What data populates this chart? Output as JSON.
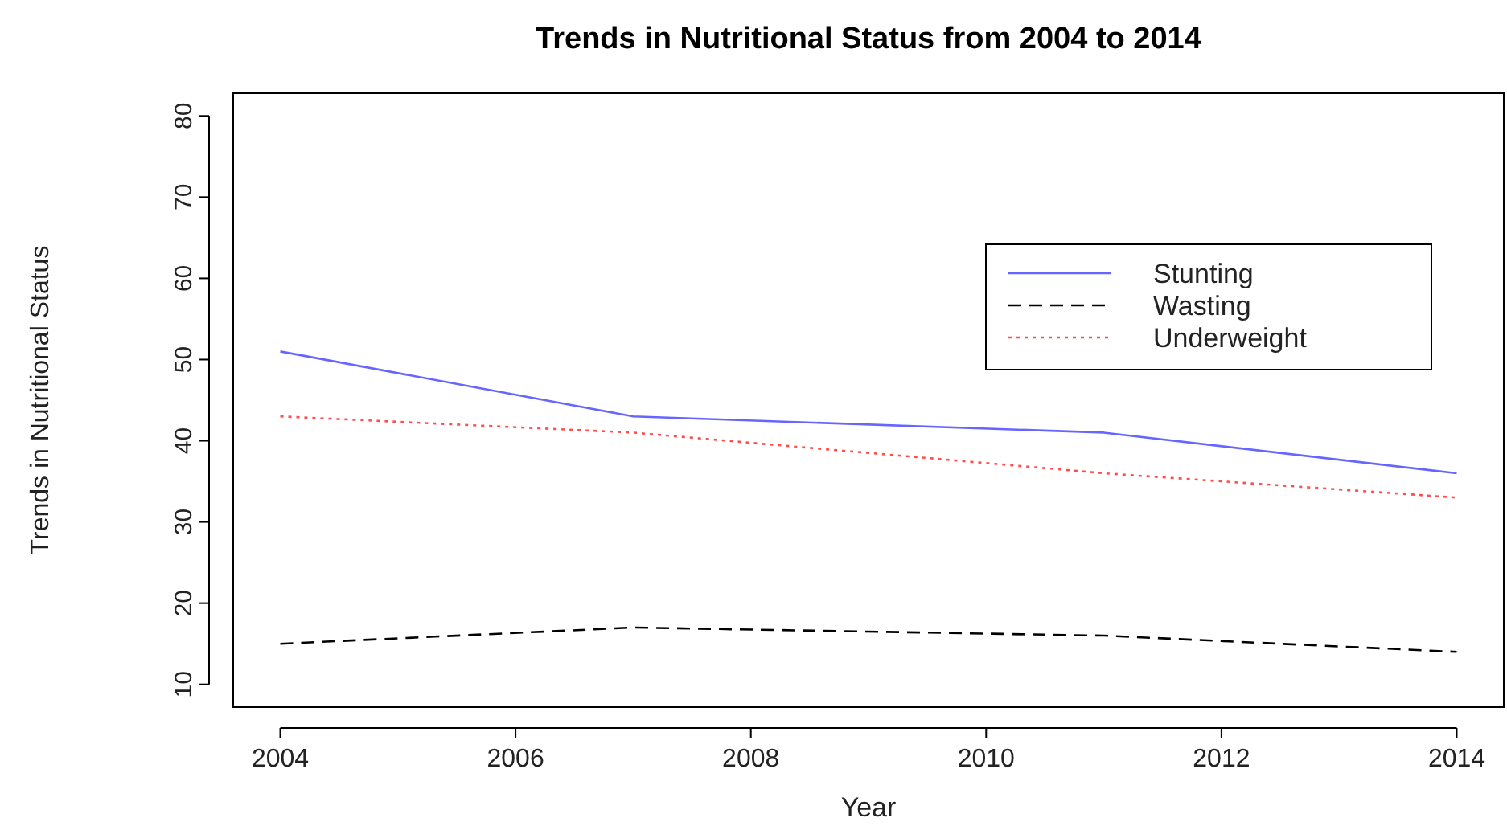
{
  "chart_data": {
    "type": "line",
    "title": "Trends in Nutritional Status from 2004 to 2014",
    "xlabel": "Year",
    "ylabel": "Trends in Nutritional Status",
    "x": [
      2004,
      2007,
      2011,
      2014
    ],
    "xlim": [
      2003.6,
      2014.4
    ],
    "xticks": [
      2004,
      2006,
      2008,
      2010,
      2012,
      2014
    ],
    "ylim": [
      7.2,
      82.8
    ],
    "yticks": [
      10,
      20,
      30,
      40,
      50,
      60,
      70,
      80
    ],
    "grid": false,
    "legend": "top right",
    "series": [
      {
        "name": "Stunting",
        "color": "#6666ff",
        "values": [
          51,
          43,
          41,
          36
        ],
        "line_style": "solid"
      },
      {
        "name": "Wasting",
        "color": "#000000",
        "values": [
          15,
          17,
          16,
          14
        ],
        "line_style": "dashed"
      },
      {
        "name": "Underweight",
        "color": "#ff4d4d",
        "values": [
          43,
          41,
          36,
          33
        ],
        "line_style": "dotted"
      }
    ]
  }
}
